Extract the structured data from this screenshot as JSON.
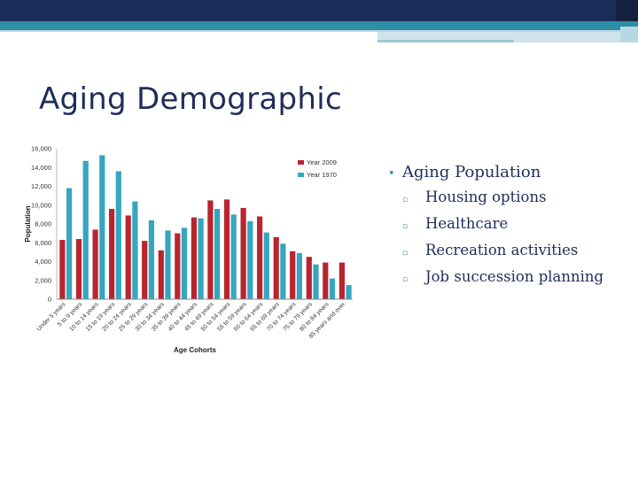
{
  "slide": {
    "title": "Aging Demographic",
    "bullets": {
      "main": "Aging Population",
      "sub": [
        "Housing options",
        "Healthcare",
        "Recreation activities",
        "Job succession planning"
      ]
    }
  },
  "colors": {
    "year2009": "#b8252e",
    "year1970": "#36a6bf",
    "navy": "#1c2d5a",
    "teal": "#2d8fa8"
  },
  "chart_data": {
    "type": "bar",
    "categories": [
      "Under 5 years",
      "5 to 9 years",
      "10 to 14 years",
      "15 to 19 years",
      "20 to 24 years",
      "25 to 29 years",
      "30 to 34 years",
      "35 to 39 years",
      "40 to 44 years",
      "45 to 49 years",
      "50 to 54 years",
      "55 to 59 years",
      "60 to 64 years",
      "65 to 69 years",
      "70 to 74 years",
      "75 to 79 years",
      "80 to 84 years",
      "85 years and over"
    ],
    "series": [
      {
        "name": "Year 2009",
        "values": [
          6300,
          6400,
          7400,
          9600,
          8900,
          6200,
          5200,
          7000,
          8700,
          10500,
          10600,
          9700,
          8800,
          6600,
          5100,
          4500,
          3900,
          3900
        ]
      },
      {
        "name": "Year 1970",
        "values": [
          11800,
          14700,
          15300,
          13600,
          10400,
          8400,
          7300,
          7600,
          8600,
          9600,
          9000,
          8300,
          7100,
          5900,
          4900,
          3700,
          2200,
          1500
        ]
      }
    ],
    "title": "",
    "xlabel": "Age Cohorts",
    "ylabel": "Population",
    "ylim": [
      0,
      16000
    ],
    "yticks": [
      "0",
      "2,000",
      "4,000",
      "6,000",
      "8,000",
      "10,000",
      "12,000",
      "14,000",
      "16,000"
    ],
    "legend_position": "top-right",
    "grid": false
  }
}
